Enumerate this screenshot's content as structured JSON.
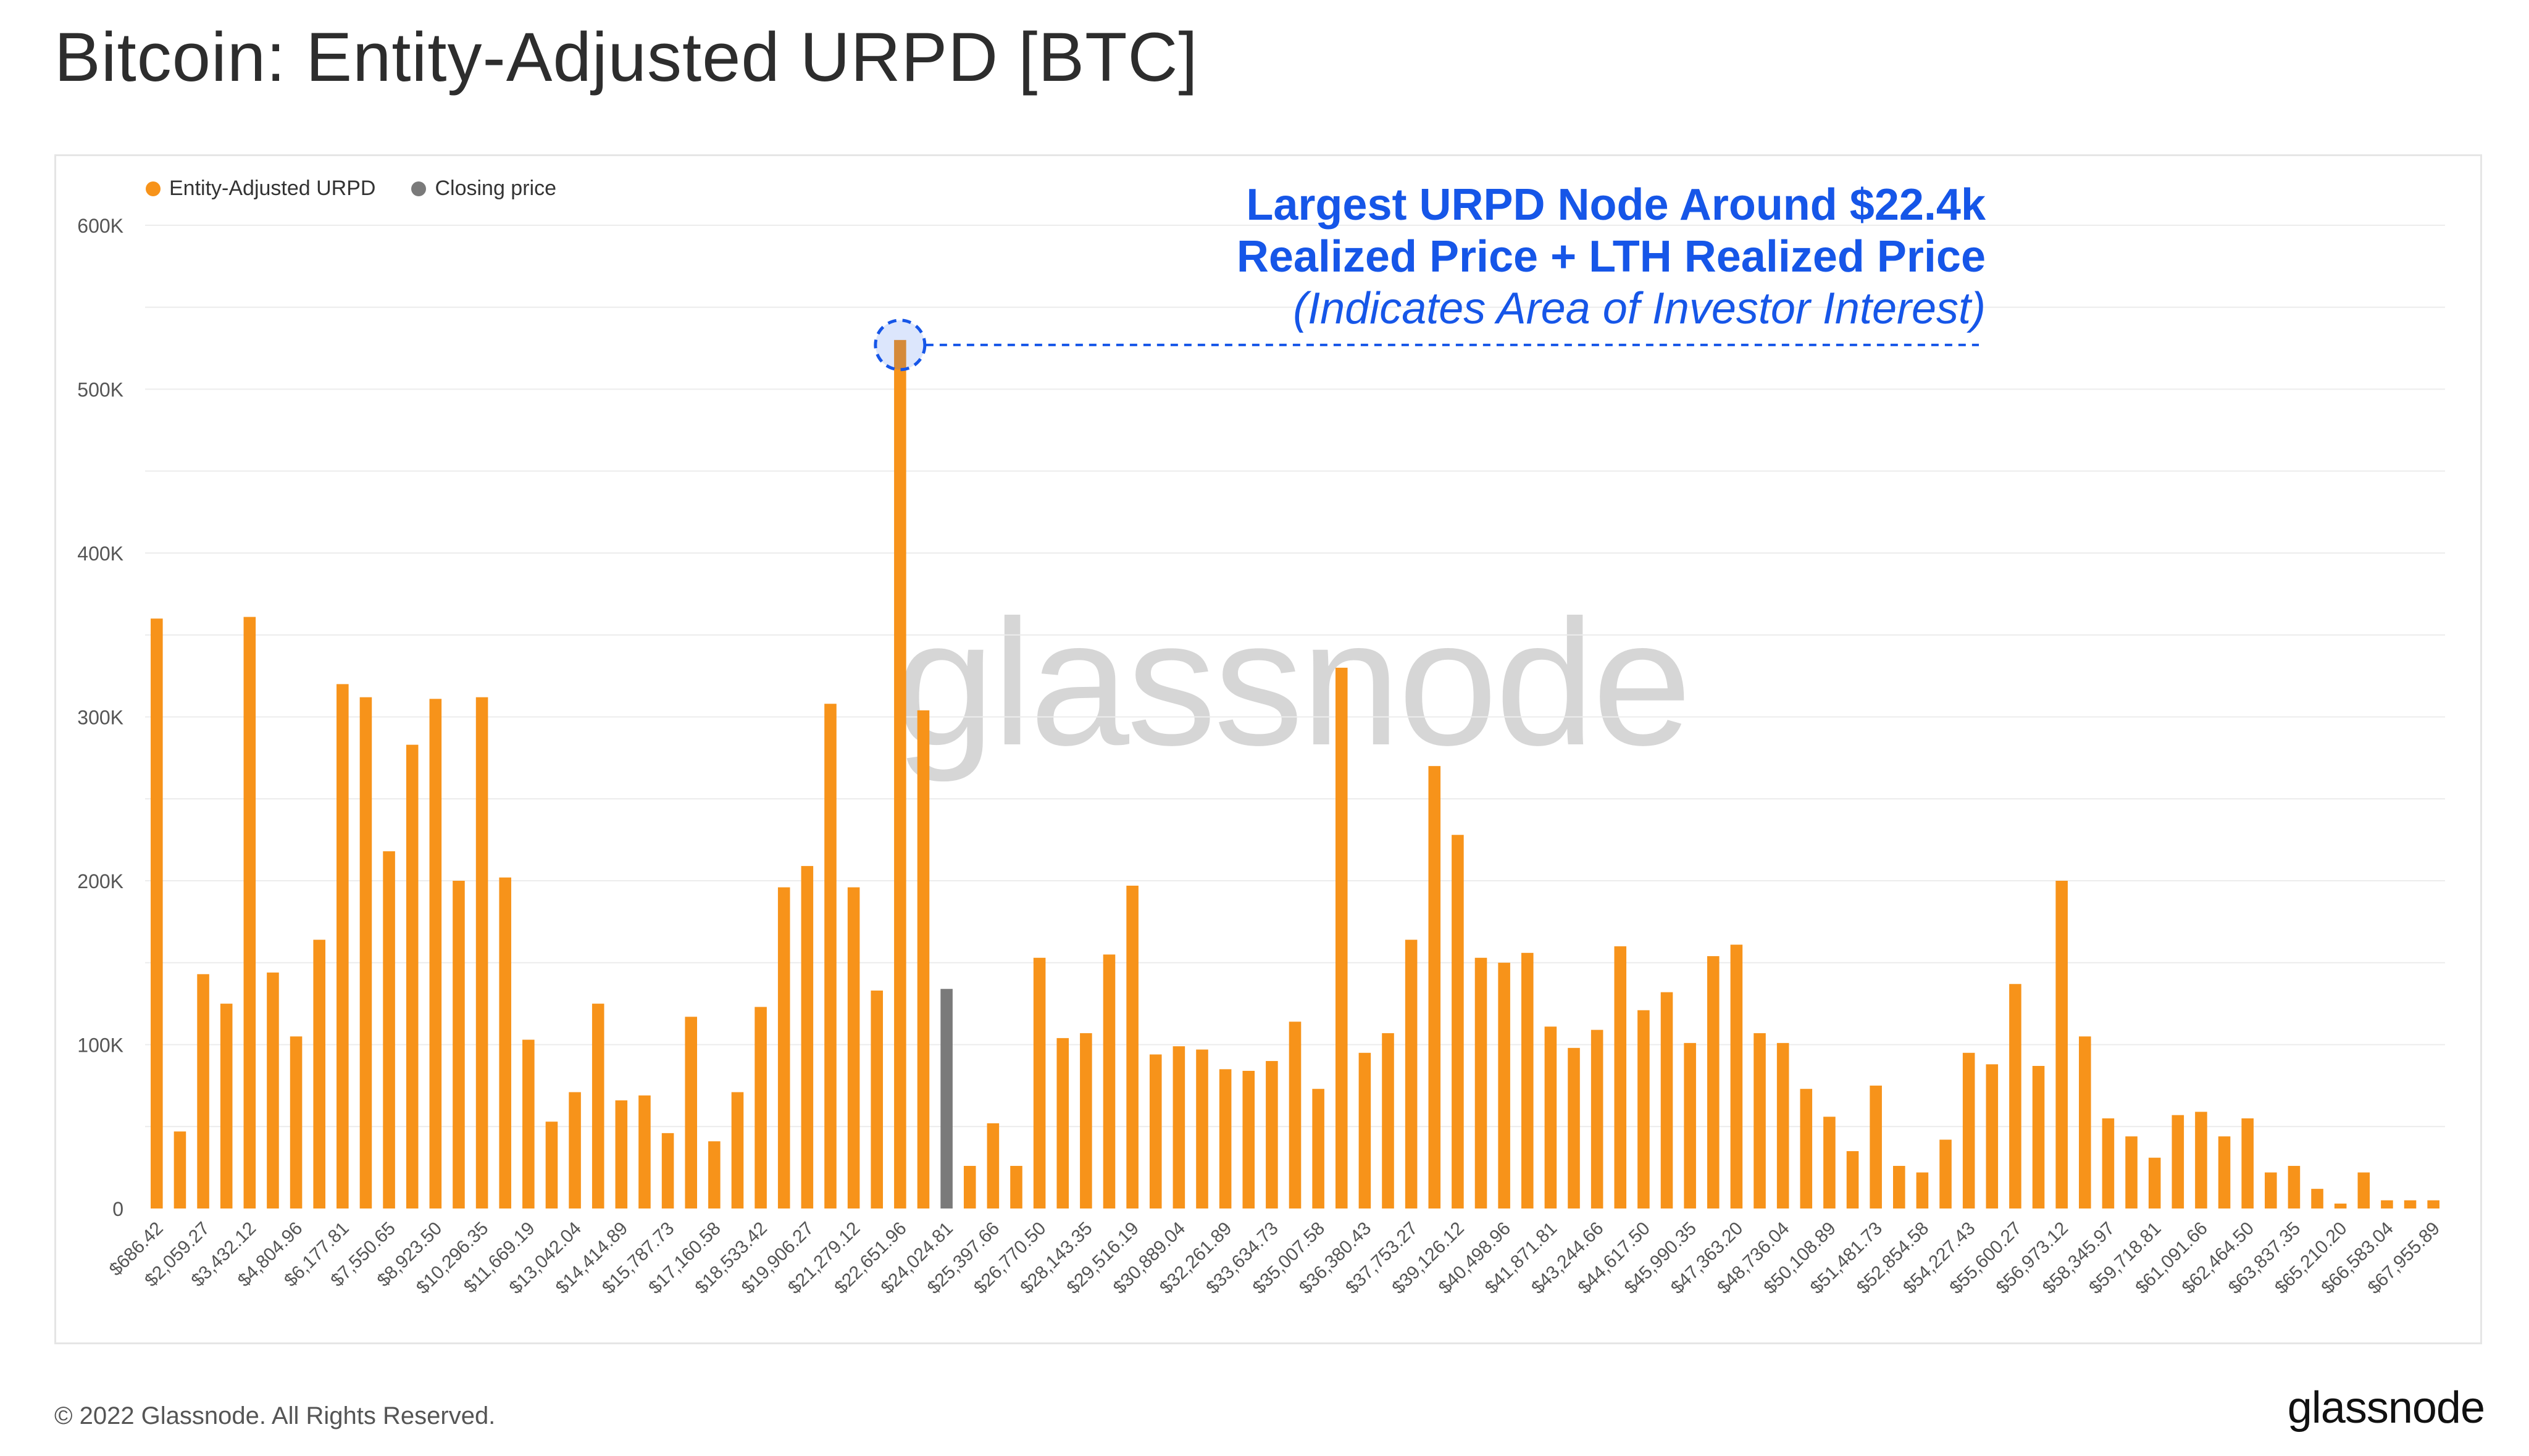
{
  "page": {
    "title": "Bitcoin: Entity-Adjusted URPD [BTC]",
    "watermark": "glassnode",
    "copyright": "© 2022 Glassnode. All Rights Reserved.",
    "brand": "glassnode"
  },
  "annotation": {
    "line1": "Largest URPD Node Around $22.4k",
    "line2": "Realized Price + LTH Realized Price",
    "line3": "(Indicates Area of Investor Interest)",
    "color": "#1656e8"
  },
  "legend": [
    {
      "label": "Entity-Adjusted URPD",
      "color": "#f7931a"
    },
    {
      "label": "Closing price",
      "color": "#7a7a7a"
    }
  ],
  "chart_data": {
    "type": "bar",
    "title": "Bitcoin: Entity-Adjusted URPD [BTC]",
    "ylim": [
      0,
      600000
    ],
    "yticks": [
      0,
      100000,
      200000,
      300000,
      400000,
      500000,
      600000
    ],
    "ytick_labels": [
      "0",
      "100K",
      "200K",
      "300K",
      "400K",
      "500K",
      "600K"
    ],
    "xtick_labels": [
      "$686.42",
      "$2,059.27",
      "$3,432.12",
      "$4,804.96",
      "$6,177.81",
      "$7,550.65",
      "$8,923.50",
      "$10,296.35",
      "$11,669.19",
      "$13,042.04",
      "$14,414.89",
      "$15,787.73",
      "$17,160.58",
      "$18,533.42",
      "$19,906.27",
      "$21,279.12",
      "$22,651.96",
      "$24,024.81",
      "$25,397.66",
      "$26,770.50",
      "$28,143.35",
      "$29,516.19",
      "$30,889.04",
      "$32,261.89",
      "$33,634.73",
      "$35,007.58",
      "$36,380.43",
      "$37,753.27",
      "$39,126.12",
      "$40,498.96",
      "$41,871.81",
      "$43,244.66",
      "$44,617.50",
      "$45,990.35",
      "$47,363.20",
      "$48,736.04",
      "$50,108.89",
      "$51,481.73",
      "$52,854.58",
      "$54,227.43",
      "$55,600.27",
      "$56,973.12",
      "$58,345.97",
      "$59,718.81",
      "$61,091.66",
      "$62,464.50",
      "$63,837.35",
      "$65,210.20",
      "$66,583.04",
      "$67,955.89"
    ],
    "closing_price_index": 34,
    "highlight_index": 32,
    "series": [
      {
        "name": "Entity-Adjusted URPD",
        "color": "#f7931a",
        "values": [
          360000,
          47000,
          143000,
          125000,
          361000,
          144000,
          105000,
          164000,
          320000,
          312000,
          218000,
          283000,
          311000,
          200000,
          312000,
          202000,
          103000,
          53000,
          71000,
          125000,
          66000,
          69000,
          46000,
          117000,
          41000,
          71000,
          123000,
          196000,
          209000,
          308000,
          196000,
          133000,
          530000,
          304000,
          0,
          26000,
          52000,
          26000,
          153000,
          104000,
          107000,
          155000,
          197000,
          94000,
          99000,
          97000,
          85000,
          84000,
          90000,
          114000,
          73000,
          330000,
          95000,
          107000,
          164000,
          270000,
          228000,
          153000,
          150000,
          156000,
          111000,
          98000,
          109000,
          160000,
          121000,
          132000,
          101000,
          154000,
          161000,
          107000,
          101000,
          73000,
          56000,
          35000,
          75000,
          26000,
          22000,
          42000,
          95000,
          88000,
          137000,
          87000,
          200000,
          105000,
          55000,
          44000,
          31000,
          57000,
          59000,
          44000,
          55000,
          22000,
          26000,
          12000,
          3000,
          22000,
          5000,
          5000,
          5000
        ]
      },
      {
        "name": "Closing price",
        "color": "#7a7a7a",
        "index": 34,
        "value": 134000
      }
    ]
  }
}
